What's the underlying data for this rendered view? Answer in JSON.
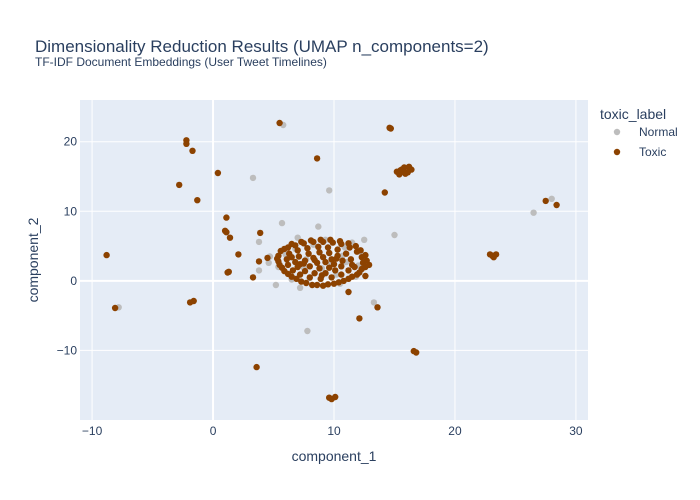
{
  "chart_data": {
    "type": "scatter",
    "title": "Dimensionality Reduction Results (UMAP n_components=2)",
    "subtitle": "TF-IDF Document Embeddings (User Tweet Timelines)",
    "xlabel": "component_1",
    "ylabel": "component_2",
    "xlim": [
      -11,
      31
    ],
    "ylim": [
      -20,
      26
    ],
    "xticks": [
      -10,
      0,
      10,
      20,
      30
    ],
    "yticks": [
      -10,
      0,
      10,
      20
    ],
    "xtick_labels": [
      "−10",
      "0",
      "10",
      "20",
      "30"
    ],
    "ytick_labels": [
      "−10",
      "0",
      "10",
      "20"
    ],
    "grid": true,
    "legend": {
      "title": "toxic_label",
      "placement": "right"
    },
    "series": [
      {
        "name": "Normal",
        "color": "#bdbdbd",
        "points": [
          [
            3.3,
            14.8
          ],
          [
            9.6,
            13.0
          ],
          [
            5.7,
            8.3
          ],
          [
            5.8,
            22.4
          ],
          [
            26.5,
            9.8
          ],
          [
            28.0,
            11.8
          ],
          [
            15.0,
            6.6
          ],
          [
            3.8,
            5.6
          ],
          [
            7.0,
            6.2
          ],
          [
            8.7,
            7.8
          ],
          [
            4.7,
            3.5
          ],
          [
            5.2,
            -0.6
          ],
          [
            7.2,
            -1.0
          ],
          [
            7.8,
            -7.2
          ],
          [
            13.3,
            -3.1
          ],
          [
            -7.8,
            -3.8
          ],
          [
            11.5,
            5.5
          ],
          [
            12.2,
            4.2
          ],
          [
            6.5,
            0.2
          ],
          [
            10.2,
            0.9
          ],
          [
            11.0,
            2.7
          ],
          [
            12.0,
            2.2
          ],
          [
            4.6,
            2.6
          ],
          [
            3.8,
            1.5
          ],
          [
            10.5,
            -0.4
          ],
          [
            6.3,
            1.0
          ],
          [
            12.5,
            5.9
          ],
          [
            9.0,
            1.8
          ],
          [
            8.3,
            5.2
          ],
          [
            10.9,
            4.8
          ],
          [
            7.5,
            1.9
          ],
          [
            5.4,
            2.0
          ],
          [
            9.3,
            5.9
          ],
          [
            6.8,
            4.6
          ],
          [
            11.8,
            0.6
          ],
          [
            8.0,
            0.4
          ],
          [
            9.8,
            2.5
          ],
          [
            10.7,
            3.6
          ],
          [
            7.7,
            3.1
          ],
          [
            6.0,
            3.8
          ]
        ]
      },
      {
        "name": "Toxic",
        "color": "#8c4200",
        "points": [
          [
            -2.2,
            20.2
          ],
          [
            -2.2,
            19.7
          ],
          [
            -1.7,
            18.7
          ],
          [
            -2.8,
            13.8
          ],
          [
            -1.3,
            11.6
          ],
          [
            0.4,
            15.5
          ],
          [
            1.1,
            9.1
          ],
          [
            1.0,
            7.2
          ],
          [
            1.1,
            7.0
          ],
          [
            1.4,
            6.2
          ],
          [
            3.9,
            6.9
          ],
          [
            2.1,
            3.8
          ],
          [
            1.3,
            1.3
          ],
          [
            1.2,
            1.2
          ],
          [
            3.3,
            0.5
          ],
          [
            3.8,
            2.8
          ],
          [
            4.5,
            3.3
          ],
          [
            -8.8,
            3.7
          ],
          [
            -8.1,
            -3.9
          ],
          [
            -1.9,
            -3.1
          ],
          [
            -1.6,
            -2.9
          ],
          [
            3.6,
            -12.4
          ],
          [
            5.5,
            22.7
          ],
          [
            8.6,
            17.6
          ],
          [
            14.7,
            21.9
          ],
          [
            14.6,
            22.0
          ],
          [
            14.2,
            12.7
          ],
          [
            27.5,
            11.5
          ],
          [
            28.4,
            10.9
          ],
          [
            22.9,
            3.8
          ],
          [
            23.1,
            3.6
          ],
          [
            23.4,
            3.8
          ],
          [
            23.2,
            3.4
          ],
          [
            11.2,
            -1.6
          ],
          [
            13.6,
            -3.8
          ],
          [
            12.1,
            -5.4
          ],
          [
            16.6,
            -10.1
          ],
          [
            16.8,
            -10.3
          ],
          [
            9.6,
            -16.8
          ],
          [
            9.8,
            -17.0
          ],
          [
            10.1,
            -16.7
          ],
          [
            15.2,
            15.7
          ],
          [
            15.4,
            15.3
          ],
          [
            15.6,
            16.0
          ],
          [
            15.8,
            16.3
          ],
          [
            16.1,
            15.6
          ],
          [
            16.4,
            16.0
          ],
          [
            15.5,
            15.9
          ],
          [
            15.9,
            15.4
          ],
          [
            16.2,
            16.4
          ],
          [
            15.7,
            15.7
          ],
          [
            5.6,
            4.3
          ],
          [
            6.2,
            4.8
          ],
          [
            6.8,
            5.1
          ],
          [
            7.5,
            5.4
          ],
          [
            8.3,
            5.6
          ],
          [
            9.1,
            5.6
          ],
          [
            9.9,
            5.5
          ],
          [
            10.6,
            5.3
          ],
          [
            11.3,
            4.8
          ],
          [
            11.9,
            4.2
          ],
          [
            12.3,
            3.4
          ],
          [
            12.4,
            2.6
          ],
          [
            12.3,
            1.7
          ],
          [
            11.9,
            0.9
          ],
          [
            11.2,
            0.3
          ],
          [
            10.4,
            -0.2
          ],
          [
            9.5,
            -0.5
          ],
          [
            8.6,
            -0.6
          ],
          [
            7.7,
            -0.3
          ],
          [
            6.9,
            0.3
          ],
          [
            6.2,
            1.0
          ],
          [
            5.7,
            1.9
          ],
          [
            5.4,
            2.8
          ],
          [
            5.4,
            3.6
          ],
          [
            6.3,
            3.9
          ],
          [
            7.0,
            4.4
          ],
          [
            7.8,
            4.7
          ],
          [
            8.7,
            4.9
          ],
          [
            9.5,
            4.8
          ],
          [
            10.3,
            4.5
          ],
          [
            11.0,
            3.9
          ],
          [
            11.4,
            3.1
          ],
          [
            11.5,
            2.3
          ],
          [
            11.2,
            1.5
          ],
          [
            10.6,
            0.9
          ],
          [
            9.8,
            0.5
          ],
          [
            8.9,
            0.3
          ],
          [
            8.0,
            0.5
          ],
          [
            7.2,
            0.9
          ],
          [
            6.6,
            1.5
          ],
          [
            6.2,
            2.3
          ],
          [
            6.1,
            3.1
          ],
          [
            7.1,
            3.5
          ],
          [
            7.9,
            3.9
          ],
          [
            8.8,
            4.1
          ],
          [
            9.6,
            4.0
          ],
          [
            10.3,
            3.6
          ],
          [
            10.7,
            2.9
          ],
          [
            10.6,
            2.1
          ],
          [
            10.1,
            1.5
          ],
          [
            9.3,
            1.1
          ],
          [
            8.4,
            1.1
          ],
          [
            7.6,
            1.4
          ],
          [
            7.0,
            2.0
          ],
          [
            6.8,
            2.7
          ],
          [
            7.6,
            2.9
          ],
          [
            8.3,
            3.3
          ],
          [
            9.1,
            3.4
          ],
          [
            9.8,
            3.1
          ],
          [
            10.0,
            2.4
          ],
          [
            9.6,
            1.9
          ],
          [
            8.8,
            1.8
          ],
          [
            8.0,
            2.1
          ],
          [
            7.5,
            2.5
          ],
          [
            8.6,
            2.6
          ],
          [
            9.3,
            2.7
          ],
          [
            5.9,
            4.6
          ],
          [
            6.5,
            5.3
          ],
          [
            7.3,
            5.6
          ],
          [
            8.1,
            5.8
          ],
          [
            8.9,
            5.9
          ],
          [
            9.7,
            5.9
          ],
          [
            10.5,
            5.7
          ],
          [
            11.2,
            5.4
          ],
          [
            11.8,
            5.0
          ],
          [
            12.2,
            4.4
          ],
          [
            12.6,
            3.7
          ],
          [
            12.7,
            2.9
          ],
          [
            12.6,
            2.0
          ],
          [
            12.1,
            1.2
          ],
          [
            11.5,
            0.6
          ],
          [
            10.8,
            0.0
          ],
          [
            10.0,
            -0.4
          ],
          [
            9.1,
            -0.7
          ],
          [
            8.2,
            -0.6
          ],
          [
            7.3,
            -0.1
          ],
          [
            6.5,
            0.6
          ],
          [
            5.9,
            1.4
          ],
          [
            5.5,
            2.3
          ],
          [
            5.3,
            3.2
          ],
          [
            8.4,
            3.0
          ],
          [
            7.2,
            2.4
          ],
          [
            10.2,
            3.2
          ],
          [
            9.0,
            0.8
          ],
          [
            6.5,
            3.4
          ],
          [
            11.7,
            2.0
          ],
          [
            12.6,
            0.7
          ],
          [
            12.9,
            2.3
          ]
        ]
      }
    ]
  }
}
